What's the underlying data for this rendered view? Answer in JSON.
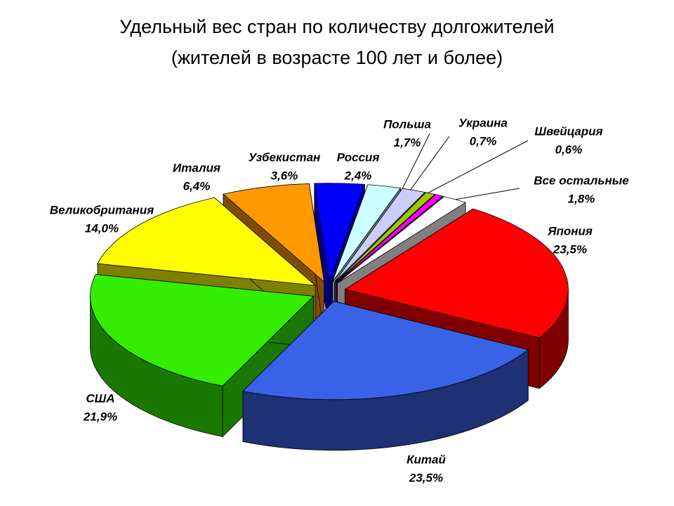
{
  "chart_data": {
    "type": "pie3d",
    "title": "Удельный вес стран по количеству долгожителей",
    "subtitle": "(жителей в возрасте 100 лет и более)",
    "categories": [
      "Япония",
      "Китай",
      "США",
      "Великобритания",
      "Италия",
      "Узбекистан",
      "Россия",
      "Польша",
      "Украина",
      "Швейцария",
      "Все остальные"
    ],
    "values": [
      23.5,
      23.5,
      21.9,
      14.0,
      6.4,
      3.6,
      2.4,
      1.7,
      0.7,
      0.6,
      1.8
    ],
    "value_labels": [
      "23,5%",
      "23,5%",
      "21,9%",
      "14,0%",
      "6,4%",
      "3,6%",
      "2,4%",
      "1,7%",
      "0,7%",
      "0,6%",
      "1,8%"
    ],
    "colors": [
      "#ff0000",
      "#3a62e8",
      "#33ee00",
      "#ffff00",
      "#ff9900",
      "#0000ff",
      "#ccffff",
      "#ccccff",
      "#99cc00",
      "#ff00ff",
      "#ffffff"
    ]
  }
}
